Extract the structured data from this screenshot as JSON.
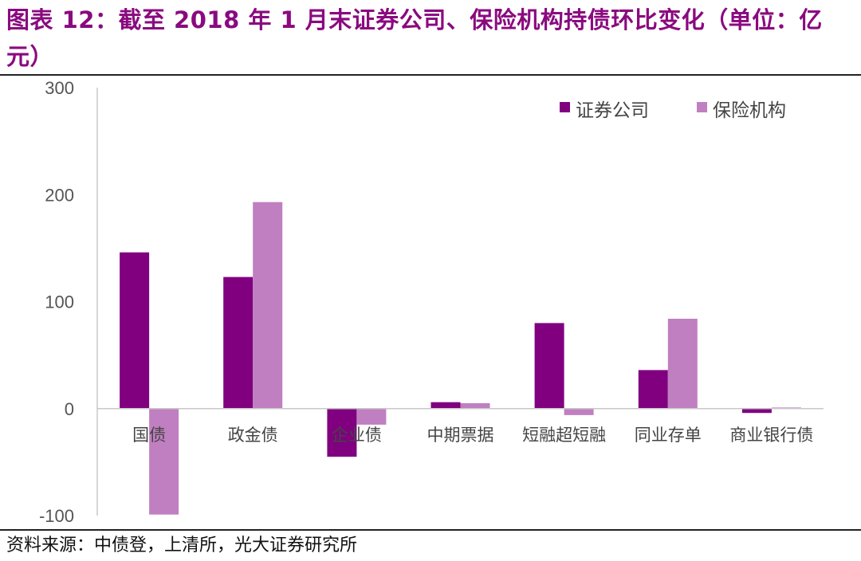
{
  "figure": {
    "title": "图表 12：截至 2018 年 1 月末证券公司、保险机构持债环比变化（单位：亿元）",
    "source": "资料来源：中债登，上清所，光大证券研究所"
  },
  "colors": {
    "title": "#8a0a7f",
    "series_1": "#800080",
    "series_2": "#c07fc0",
    "axis": "#c8c8c8"
  },
  "chart_data": {
    "type": "bar",
    "categories": [
      "国债",
      "政金债",
      "企业债",
      "中期票据",
      "短融超短融",
      "同业存单",
      "商业银行债"
    ],
    "series": [
      {
        "name": "证券公司",
        "values": [
          146,
          123,
          -45,
          6,
          80,
          36,
          -4
        ]
      },
      {
        "name": "保险机构",
        "values": [
          -99,
          193,
          -15,
          5,
          -6,
          84,
          1
        ]
      }
    ],
    "yticks": [
      "300",
      "200",
      "100",
      "0",
      "-100"
    ],
    "ylim": [
      -100,
      300
    ],
    "xlabel": "",
    "ylabel": "",
    "grid": false,
    "legend_position": "top-right"
  }
}
